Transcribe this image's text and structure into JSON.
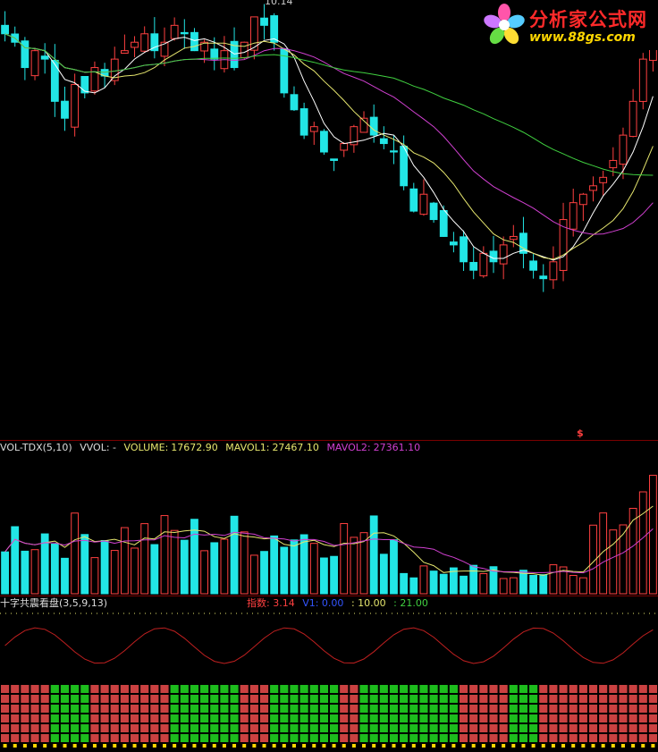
{
  "main_chart": {
    "high_label": "10.14",
    "marker": "$",
    "colors": {
      "up": "#ff4040",
      "down": "#22e6e6",
      "ma1": "#ffffff",
      "ma2": "#e6e66e",
      "ma3": "#d040d0",
      "ma4": "#40d040"
    }
  },
  "volume_panel": {
    "title": "VOL-TDX(5,10)",
    "vvol_label": "VVOL: -",
    "volume_label": "VOLUME:",
    "volume_value": "17672.90",
    "mavol1_label": "MAVOL1:",
    "mavol1_value": "27467.10",
    "mavol2_label": "MAVOL2:",
    "mavol2_value": "27361.10"
  },
  "indicator_panel": {
    "title": "十字共震看盘",
    "params": "(3,5,9,13)",
    "index_label": "指数",
    "index_value": ": 3.14",
    "v1_label": "V1",
    "v1_value": ": 0.00",
    "l2_value": ": 10.00",
    "l3_value": ": 21.00"
  },
  "logo": {
    "name": "分析家公式网",
    "url": "www.88gs.com"
  },
  "chart_data": {
    "type": "candlestick",
    "title": "",
    "closes": [
      10.0,
      9.9,
      9.6,
      9.8,
      9.7,
      9.2,
      9.0,
      9.4,
      9.3,
      9.6,
      9.5,
      9.7,
      9.8,
      9.9,
      10.0,
      9.8,
      9.9,
      10.1,
      10.0,
      9.8,
      9.9,
      9.7,
      9.8,
      9.6,
      9.9,
      10.2,
      10.1,
      9.9,
      9.3,
      9.1,
      8.8,
      8.9,
      8.6,
      8.5,
      8.7,
      8.9,
      9.0,
      8.8,
      8.7,
      8.6,
      8.2,
      7.9,
      8.1,
      7.8,
      7.6,
      7.5,
      7.3,
      7.2,
      7.4,
      7.3,
      7.5,
      7.6,
      7.4,
      7.2,
      7.1,
      7.3,
      7.8,
      8.0,
      8.1,
      8.2,
      8.3,
      8.5,
      8.8,
      9.2,
      9.7,
      10.1
    ],
    "volume_last": 17672.9,
    "mavol1_last": 27467.1,
    "mavol2_last": 27361.1
  }
}
